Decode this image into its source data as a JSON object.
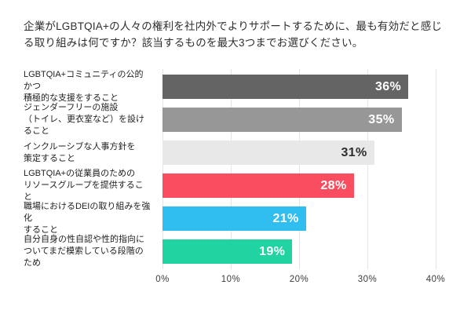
{
  "chart_data": {
    "type": "bar",
    "orientation": "horizontal",
    "title": "企業がLGBTQIA+の人々の権利を社内外でよりサポートするために、最も有効だと感じる取り組みは何ですか？該当するものを最大3つまでお選びください。",
    "categories": [
      [
        "LGBTQIA+コミュニティの公的かつ",
        "積極的な支援をすること"
      ],
      [
        "ジェンダーフリーの施設",
        "（トイレ、更衣室など）を設けること"
      ],
      [
        "インクルーシブな人事方針を",
        "策定すること"
      ],
      [
        "LGBTQIA+の従業員のための",
        "リソースグループを提供すること"
      ],
      [
        "職場におけるDEIの取り組みを強化",
        "すること"
      ],
      [
        "自分自身の性自認や性的指向に",
        "ついてまだ模索している段階のため"
      ]
    ],
    "values": [
      36,
      35,
      31,
      28,
      21,
      19
    ],
    "value_labels": [
      "36%",
      "35%",
      "31%",
      "28%",
      "21%",
      "19%"
    ],
    "bar_colors": [
      "#646464",
      "#979797",
      "#e8e8e8",
      "#fb4d60",
      "#30bdf0",
      "#21d3a0"
    ],
    "value_text_colors": [
      "#ffffff",
      "#ffffff",
      "#2e2e2e",
      "#ffffff",
      "#ffffff",
      "#ffffff"
    ],
    "xlabel": "",
    "ylabel": "",
    "xlim": [
      0,
      40
    ],
    "xticks": [
      "0%",
      "10%",
      "20%",
      "30%",
      "40%"
    ],
    "grid": "vertical",
    "legend": "none"
  },
  "colors": {
    "background": "#ffffff",
    "gridline": "#e4e4e4",
    "title_text": "#2e2e2e",
    "category_text": "#1e1e1e",
    "tick_text": "#3c3c3c"
  }
}
